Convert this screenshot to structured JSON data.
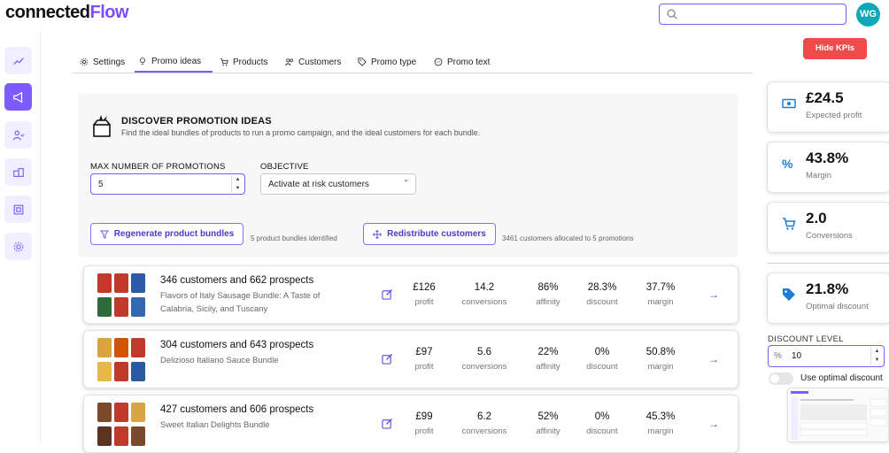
{
  "header": {
    "logo_part1": "connected",
    "logo_part2": "Flow",
    "search_placeholder": "",
    "avatar_initials": "WG"
  },
  "sidebar": {
    "items": [
      {
        "icon": "analytics-icon",
        "active": false
      },
      {
        "icon": "megaphone-icon",
        "active": true
      },
      {
        "icon": "users-icon",
        "active": false
      },
      {
        "icon": "products-icon",
        "active": false
      },
      {
        "icon": "target-icon",
        "active": false
      },
      {
        "icon": "settings-icon",
        "active": false
      }
    ]
  },
  "tabs": [
    {
      "label": "Settings",
      "icon": "gear-icon"
    },
    {
      "label": "Promo ideas",
      "icon": "lightbulb-icon",
      "active": true
    },
    {
      "label": "Products",
      "icon": "cart-icon"
    },
    {
      "label": "Customers",
      "icon": "users-icon"
    },
    {
      "label": "Promo type",
      "icon": "tag-icon"
    },
    {
      "label": "Promo text",
      "icon": "chat-icon"
    }
  ],
  "hide_kpis_label": "Hide KPIs",
  "discover": {
    "title": "DISCOVER PROMOTION IDEAS",
    "subtitle": "Find the ideal bundles of products to run a promo campaign, and the ideal customers for each bundle.",
    "max_label": "MAX NUMBER OF PROMOTIONS",
    "max_value": "5",
    "objective_label": "OBJECTIVE",
    "objective_value": "Activate at risk customers",
    "regenerate_label": "Regenerate product bundles",
    "regenerate_note": "5 product bundles identified",
    "redistribute_label": "Redistribute customers",
    "redistribute_note": "3461 customers allocated to 5 promotions"
  },
  "metric_labels": {
    "profit": "profit",
    "conversions": "conversions",
    "affinity": "affinity",
    "discount": "discount",
    "margin": "margin"
  },
  "bundles": [
    {
      "title": "346 customers and 662 prospects",
      "subtitle": "Flavors of Italy Sausage Bundle: A Taste of Calabria, Sicily, and Tuscany",
      "profit": "£126",
      "conversions": "14.2",
      "affinity": "86%",
      "discount": "28.3%",
      "margin": "37.7%",
      "colors": [
        "#c0392b",
        "#c0392b",
        "#2e5aa8",
        "#2e6b3a",
        "#c0392b",
        "#3566b0"
      ]
    },
    {
      "title": "304 customers and 643 prospects",
      "subtitle": "Delizioso Italiano Sauce Bundle",
      "profit": "£97",
      "conversions": "5.6",
      "affinity": "22%",
      "discount": "0%",
      "margin": "50.8%",
      "colors": [
        "#d9a441",
        "#d35400",
        "#c0392b",
        "#e8b74a",
        "#c0392b",
        "#2c5aa0"
      ]
    },
    {
      "title": "427 customers and 606 prospects",
      "subtitle": "Sweet Italian Delights Bundle",
      "profit": "£99",
      "conversions": "6.2",
      "affinity": "52%",
      "discount": "0%",
      "margin": "45.3%",
      "colors": [
        "#7a4a2a",
        "#c0392b",
        "#d9a441",
        "#5a3420",
        "#c0392b",
        "#7a4a2a"
      ]
    }
  ],
  "kpis": [
    {
      "value": "£24.5",
      "label": "Expected profit",
      "icon": "money-icon"
    },
    {
      "value": "43.8%",
      "label": "Margin",
      "icon": "percent-icon"
    },
    {
      "value": "2.0",
      "label": "Conversions",
      "icon": "cart-icon"
    },
    {
      "value": "21.8%",
      "label": "Optimal discount",
      "icon": "tag-icon"
    }
  ],
  "discount_level": {
    "label": "DISCOUNT LEVEL",
    "symbol": "%",
    "value": "10",
    "toggle_label": "Use optimal discount"
  },
  "colors": {
    "accent": "#7c5cff",
    "danger": "#f04b4b",
    "kpi_icon": "#1c7cd6",
    "avatar": "#0fa8b8"
  }
}
